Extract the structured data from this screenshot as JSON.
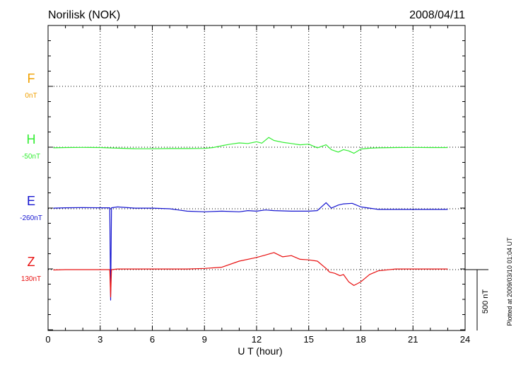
{
  "header": {
    "station": "Norilisk (NOK)",
    "date": "2008/04/11"
  },
  "footer": {
    "plotted_at": "Plotted at 2009/03/10 01:04 UT"
  },
  "chart_data": {
    "type": "line",
    "title": "Norilisk (NOK)",
    "xlabel": "U T (hour)",
    "xlim": [
      0,
      24
    ],
    "x_ticks": [
      0,
      3,
      6,
      9,
      12,
      15,
      18,
      21,
      24
    ],
    "x_tick_labels": [
      "0",
      "3",
      "6",
      "9",
      "12",
      "15",
      "18",
      "21",
      "24"
    ],
    "grid": "dotted, vertical every 3 h, horizontal at each component baseline",
    "scale_bar": {
      "label": "500 nT",
      "value_nT": 500
    },
    "channels": [
      {
        "name": "F",
        "offset_label": "0nT",
        "color": "#f0a000",
        "x": [],
        "values": []
      },
      {
        "name": "H",
        "offset_label": "-50nT",
        "color": "#33ee33",
        "x": [
          0.3,
          1,
          2,
          3,
          4,
          5,
          6,
          7,
          8,
          9,
          9.5,
          10,
          10.5,
          11,
          11.5,
          12,
          12.3,
          12.7,
          13,
          13.5,
          14,
          14.5,
          15,
          15.5,
          16,
          16.3,
          16.7,
          17,
          17.3,
          17.6,
          18,
          18.5,
          19,
          20,
          21,
          22,
          23
        ],
        "values": [
          -5,
          -3,
          -2,
          -3,
          -8,
          -12,
          -13,
          -11,
          -11,
          -10,
          -3,
          12,
          25,
          35,
          30,
          45,
          33,
          80,
          55,
          40,
          30,
          20,
          25,
          -5,
          20,
          -20,
          -40,
          -20,
          -30,
          -50,
          -15,
          -8,
          -5,
          -3,
          -2,
          -3,
          -3
        ]
      },
      {
        "name": "E",
        "offset_label": "-260nT",
        "color": "#1515d0",
        "x": [
          0.3,
          1,
          2,
          3,
          3.55,
          3.6,
          3.65,
          4,
          5,
          6,
          7,
          8,
          9,
          10,
          11,
          11.5,
          12,
          12.5,
          13,
          14,
          15,
          15.5,
          16,
          16.3,
          16.7,
          17,
          17.5,
          18,
          19,
          20,
          21,
          22,
          23
        ],
        "values": [
          5,
          8,
          10,
          8,
          8,
          -750,
          8,
          15,
          5,
          5,
          0,
          -20,
          -25,
          -20,
          -25,
          -15,
          -20,
          -10,
          -15,
          -20,
          -20,
          -15,
          50,
          5,
          30,
          40,
          45,
          15,
          -5,
          -5,
          -5,
          -5,
          -5
        ]
      },
      {
        "name": "Z",
        "offset_label": "130nT",
        "color": "#e81010",
        "x": [
          0.3,
          1,
          2,
          3,
          3.55,
          3.6,
          3.65,
          4,
          5,
          6,
          7,
          8,
          9,
          10,
          11,
          12,
          12.5,
          13,
          13.5,
          14,
          14.5,
          15,
          15.5,
          16,
          16.2,
          16.5,
          16.8,
          17,
          17.3,
          17.6,
          18,
          18.5,
          19,
          20,
          21,
          22,
          23
        ],
        "values": [
          -3,
          0,
          0,
          0,
          0,
          -225,
          0,
          5,
          5,
          5,
          5,
          5,
          10,
          20,
          70,
          100,
          120,
          140,
          105,
          115,
          85,
          80,
          70,
          10,
          -20,
          -30,
          -50,
          -40,
          -100,
          -130,
          -100,
          -40,
          -10,
          5,
          5,
          5,
          5
        ]
      }
    ]
  }
}
